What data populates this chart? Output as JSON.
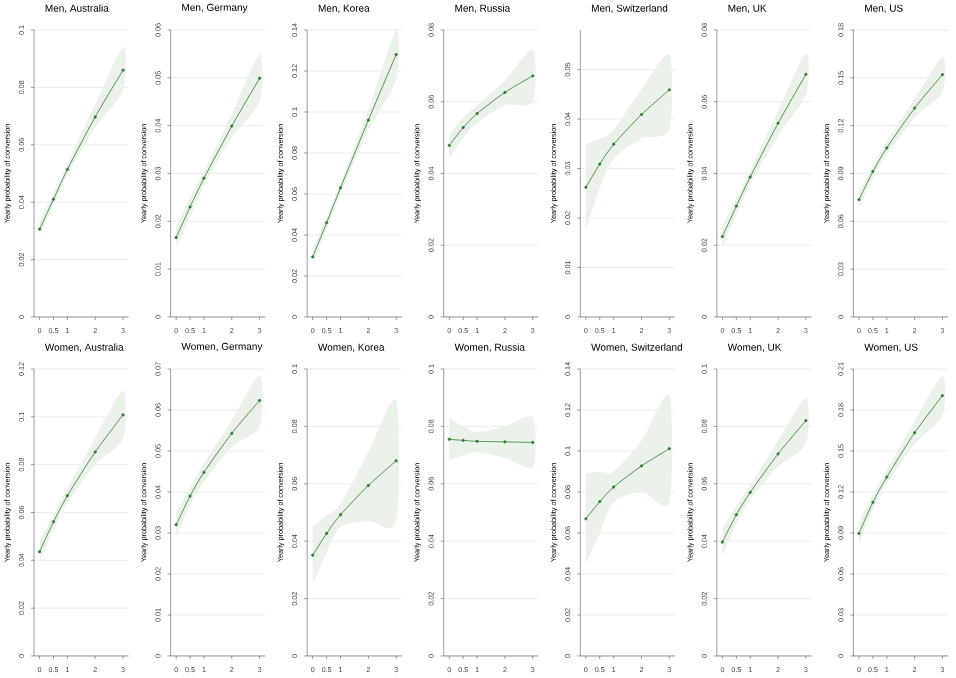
{
  "chart_data": [
    {
      "type": "line",
      "title": "Men, Australia",
      "ylabel": "Yearly probability of conversion",
      "x": [
        0,
        0.5,
        1,
        2,
        3
      ],
      "xlim": [
        -0.2,
        3.2
      ],
      "xticks": [
        0,
        0.5,
        1,
        2,
        3
      ],
      "ylim": [
        0,
        0.1
      ],
      "yticks": [
        0,
        0.02,
        0.04,
        0.06,
        0.08,
        0.1
      ],
      "grid": "y",
      "marker": "circle",
      "series": [
        {
          "color": "#2e7d32",
          "values": [
            0.0306,
            0.041,
            0.0514,
            0.0697,
            0.086
          ],
          "lower": [
            0.028,
            0.039,
            0.0495,
            0.066,
            0.079
          ],
          "upper": [
            0.0335,
            0.043,
            0.0535,
            0.074,
            0.094
          ]
        }
      ]
    },
    {
      "type": "line",
      "title": "Men, Germany",
      "ylabel": "Yearly probability of conversion",
      "x": [
        0,
        0.5,
        1,
        2,
        3
      ],
      "xlim": [
        -0.2,
        3.2
      ],
      "xticks": [
        0,
        0.5,
        1,
        2,
        3
      ],
      "ylim": [
        0,
        0.06
      ],
      "yticks": [
        0,
        0.01,
        0.02,
        0.03,
        0.04,
        0.05,
        0.06
      ],
      "grid": "y",
      "marker": "circle",
      "series": [
        {
          "color": "#2e7d32",
          "values": [
            0.0166,
            0.023,
            0.029,
            0.0399,
            0.0499
          ],
          "lower": [
            0.0145,
            0.021,
            0.0275,
            0.0375,
            0.045
          ],
          "upper": [
            0.019,
            0.025,
            0.0305,
            0.0425,
            0.055
          ]
        }
      ]
    },
    {
      "type": "line",
      "title": "Men, Korea",
      "ylabel": "Yearly probability of conversion",
      "x": [
        0,
        0.5,
        1,
        2,
        3
      ],
      "xlim": [
        -0.2,
        3.2
      ],
      "xticks": [
        0,
        0.5,
        1,
        2,
        3
      ],
      "ylim": [
        0,
        0.14
      ],
      "yticks": [
        0,
        0.02,
        0.04,
        0.06,
        0.08,
        0.1,
        0.12,
        0.14
      ],
      "grid": "y",
      "marker": "circle",
      "series": [
        {
          "color": "#2e7d32",
          "values": [
            0.0293,
            0.046,
            0.063,
            0.096,
            0.128
          ],
          "lower": [
            0.025,
            0.043,
            0.06,
            0.091,
            0.116
          ],
          "upper": [
            0.034,
            0.049,
            0.066,
            0.101,
            0.14
          ]
        }
      ]
    },
    {
      "type": "line",
      "title": "Men, Russia",
      "ylabel": "Yearly probability of conversion",
      "x": [
        0,
        0.5,
        1,
        2,
        3
      ],
      "xlim": [
        -0.2,
        3.2
      ],
      "xticks": [
        0,
        0.5,
        1,
        2,
        3
      ],
      "ylim": [
        0,
        0.08
      ],
      "yticks": [
        0,
        0.02,
        0.04,
        0.06,
        0.08
      ],
      "grid": "y",
      "marker": "circle",
      "series": [
        {
          "color": "#2e7d32",
          "values": [
            0.0478,
            0.0528,
            0.0567,
            0.0626,
            0.0672
          ],
          "lower": [
            0.044,
            0.05,
            0.054,
            0.059,
            0.06
          ],
          "upper": [
            0.051,
            0.0555,
            0.059,
            0.066,
            0.0745
          ]
        }
      ]
    },
    {
      "type": "line",
      "title": "Men, Switzerland",
      "ylabel": "Yearly probability of conversion",
      "x": [
        0,
        0.5,
        1,
        2,
        3
      ],
      "xlim": [
        -0.2,
        3.2
      ],
      "xticks": [
        0,
        0.5,
        1,
        2,
        3
      ],
      "ylim": [
        0,
        0.058
      ],
      "yticks": [
        0,
        0.01,
        0.02,
        0.03,
        0.04,
        0.05
      ],
      "grid": "y",
      "marker": "circle",
      "series": [
        {
          "color": "#2e7d32",
          "values": [
            0.0262,
            0.0309,
            0.0349,
            0.0409,
            0.0459
          ],
          "lower": [
            0.0175,
            0.026,
            0.032,
            0.036,
            0.038
          ],
          "upper": [
            0.035,
            0.036,
            0.0378,
            0.046,
            0.053
          ]
        }
      ]
    },
    {
      "type": "line",
      "title": "Men, UK",
      "ylabel": "Yearly probability of conversion",
      "x": [
        0,
        0.5,
        1,
        2,
        3
      ],
      "xlim": [
        -0.2,
        3.2
      ],
      "xticks": [
        0,
        0.5,
        1,
        2,
        3
      ],
      "ylim": [
        0,
        0.08
      ],
      "yticks": [
        0,
        0.02,
        0.04,
        0.06,
        0.08
      ],
      "grid": "y",
      "marker": "circle",
      "series": [
        {
          "color": "#2e7d32",
          "values": [
            0.0224,
            0.0309,
            0.039,
            0.054,
            0.0676
          ],
          "lower": [
            0.0195,
            0.0285,
            0.037,
            0.0505,
            0.062
          ],
          "upper": [
            0.0255,
            0.033,
            0.041,
            0.0575,
            0.0735
          ]
        }
      ]
    },
    {
      "type": "line",
      "title": "Men, US",
      "ylabel": "Yearly probability of conversion",
      "x": [
        0,
        0.5,
        1,
        2,
        3
      ],
      "xlim": [
        -0.2,
        3.2
      ],
      "xticks": [
        0,
        0.5,
        1,
        2,
        3
      ],
      "ylim": [
        0,
        0.18
      ],
      "yticks": [
        0,
        0.03,
        0.06,
        0.09,
        0.12,
        0.15,
        0.18
      ],
      "grid": "y",
      "marker": "circle",
      "series": [
        {
          "color": "#2e7d32",
          "values": [
            0.0736,
            0.0912,
            0.106,
            0.131,
            0.152
          ],
          "lower": [
            0.068,
            0.087,
            0.102,
            0.125,
            0.141
          ],
          "upper": [
            0.079,
            0.095,
            0.11,
            0.137,
            0.163
          ]
        }
      ]
    },
    {
      "type": "line",
      "title": "Women, Australia",
      "ylabel": "Yearly probability of conversion",
      "x": [
        0,
        0.5,
        1,
        2,
        3
      ],
      "xlim": [
        -0.2,
        3.2
      ],
      "xticks": [
        0,
        0.5,
        1,
        2,
        3
      ],
      "ylim": [
        0,
        0.12
      ],
      "yticks": [
        0,
        0.02,
        0.04,
        0.06,
        0.08,
        0.1,
        0.12
      ],
      "grid": "y",
      "marker": "circle",
      "series": [
        {
          "color": "#2e7d32",
          "values": [
            0.0436,
            0.0561,
            0.067,
            0.0853,
            0.1008
          ],
          "lower": [
            0.039,
            0.053,
            0.064,
            0.08,
            0.091
          ],
          "upper": [
            0.048,
            0.059,
            0.07,
            0.091,
            0.111
          ]
        }
      ]
    },
    {
      "type": "line",
      "title": "Women, Germany",
      "ylabel": "Yearly probability of conversion",
      "x": [
        0,
        0.5,
        1,
        2,
        3
      ],
      "xlim": [
        -0.2,
        3.2
      ],
      "xticks": [
        0,
        0.5,
        1,
        2,
        3
      ],
      "ylim": [
        0,
        0.07
      ],
      "yticks": [
        0,
        0.01,
        0.02,
        0.03,
        0.04,
        0.05,
        0.06,
        0.07
      ],
      "grid": "y",
      "marker": "circle",
      "series": [
        {
          "color": "#2e7d32",
          "values": [
            0.032,
            0.039,
            0.0448,
            0.0543,
            0.0623
          ],
          "lower": [
            0.029,
            0.037,
            0.0425,
            0.051,
            0.056
          ],
          "upper": [
            0.035,
            0.041,
            0.047,
            0.0575,
            0.0685
          ]
        }
      ]
    },
    {
      "type": "line",
      "title": "Women, Korea",
      "ylabel": "Yearly probability of conversion",
      "x": [
        0,
        0.5,
        1,
        2,
        3
      ],
      "xlim": [
        -0.2,
        3.2
      ],
      "xticks": [
        0,
        0.5,
        1,
        2,
        3
      ],
      "ylim": [
        0,
        0.1
      ],
      "yticks": [
        0,
        0.02,
        0.04,
        0.06,
        0.08,
        0.1
      ],
      "grid": "y",
      "marker": "circle",
      "series": [
        {
          "color": "#2e7d32",
          "values": [
            0.0351,
            0.0427,
            0.0492,
            0.0594,
            0.068
          ],
          "lower": [
            0.025,
            0.036,
            0.045,
            0.047,
            0.047
          ],
          "upper": [
            0.045,
            0.049,
            0.053,
            0.071,
            0.089
          ]
        }
      ]
    },
    {
      "type": "line",
      "title": "Women, Russia",
      "ylabel": "Yearly probability of conversion",
      "x": [
        0,
        0.5,
        1,
        2,
        3
      ],
      "xlim": [
        -0.2,
        3.2
      ],
      "xticks": [
        0,
        0.5,
        1,
        2,
        3
      ],
      "ylim": [
        0,
        0.1
      ],
      "yticks": [
        0,
        0.02,
        0.04,
        0.06,
        0.08,
        0.1
      ],
      "grid": "y",
      "marker": "circle",
      "series": [
        {
          "color": "#2e7d32",
          "values": [
            0.0755,
            0.0751,
            0.0748,
            0.0746,
            0.0744
          ],
          "lower": [
            0.068,
            0.07,
            0.071,
            0.069,
            0.066
          ],
          "upper": [
            0.083,
            0.08,
            0.078,
            0.08,
            0.083
          ]
        }
      ]
    },
    {
      "type": "line",
      "title": "Women, Switzerland",
      "ylabel": "Yearly probability of conversion",
      "x": [
        0,
        0.5,
        1,
        2,
        3
      ],
      "xlim": [
        -0.2,
        3.2
      ],
      "xticks": [
        0,
        0.5,
        1,
        2,
        3
      ],
      "ylim": [
        0,
        0.14
      ],
      "yticks": [
        0,
        0.02,
        0.04,
        0.06,
        0.08,
        0.1,
        0.12,
        0.14
      ],
      "grid": "y",
      "marker": "circle",
      "series": [
        {
          "color": "#2e7d32",
          "values": [
            0.0669,
            0.0753,
            0.0824,
            0.0927,
            0.1011
          ],
          "lower": [
            0.045,
            0.06,
            0.075,
            0.08,
            0.075
          ],
          "upper": [
            0.089,
            0.09,
            0.09,
            0.105,
            0.127
          ]
        }
      ]
    },
    {
      "type": "line",
      "title": "Women, UK",
      "ylabel": "Yearly probability of conversion",
      "x": [
        0,
        0.5,
        1,
        2,
        3
      ],
      "xlim": [
        -0.2,
        3.2
      ],
      "xticks": [
        0,
        0.5,
        1,
        2,
        3
      ],
      "ylim": [
        0,
        0.1
      ],
      "yticks": [
        0,
        0.02,
        0.04,
        0.06,
        0.08,
        0.1
      ],
      "grid": "y",
      "marker": "circle",
      "series": [
        {
          "color": "#2e7d32",
          "values": [
            0.0397,
            0.0492,
            0.057,
            0.0704,
            0.082
          ],
          "lower": [
            0.035,
            0.046,
            0.0545,
            0.066,
            0.074
          ],
          "upper": [
            0.0445,
            0.0525,
            0.0595,
            0.075,
            0.09
          ]
        }
      ]
    },
    {
      "type": "line",
      "title": "Women, US",
      "ylabel": "Yearly probability of conversion",
      "x": [
        0,
        0.5,
        1,
        2,
        3
      ],
      "xlim": [
        -0.2,
        3.2
      ],
      "xticks": [
        0,
        0.5,
        1,
        2,
        3
      ],
      "ylim": [
        0,
        0.21
      ],
      "yticks": [
        0,
        0.03,
        0.06,
        0.09,
        0.12,
        0.15,
        0.18,
        0.21
      ],
      "grid": "y",
      "marker": "circle",
      "series": [
        {
          "color": "#2e7d32",
          "values": [
            0.0897,
            0.1124,
            0.1309,
            0.1633,
            0.1905
          ],
          "lower": [
            0.082,
            0.107,
            0.126,
            0.155,
            0.176
          ],
          "upper": [
            0.098,
            0.118,
            0.136,
            0.172,
            0.205
          ]
        }
      ]
    }
  ]
}
